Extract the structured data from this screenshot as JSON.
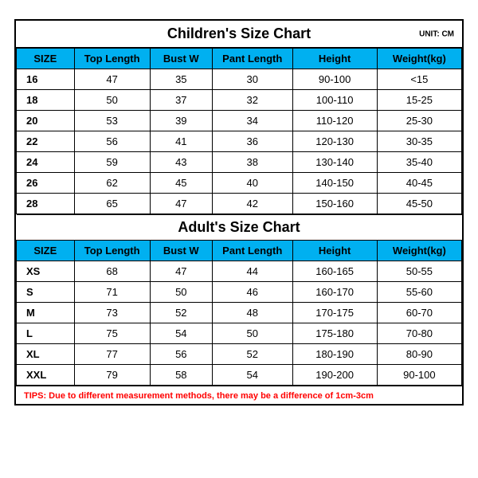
{
  "colors": {
    "header_bg": "#00b0f0",
    "border": "#000000",
    "tips": "#ff0000",
    "background": "#ffffff"
  },
  "children": {
    "title": "Children's Size Chart",
    "unit": "UNIT: CM",
    "columns": [
      "SIZE",
      "Top Length",
      "Bust W",
      "Pant Length",
      "Height",
      "Weight(kg)"
    ],
    "rows": [
      [
        "16",
        "47",
        "35",
        "30",
        "90-100",
        "<15"
      ],
      [
        "18",
        "50",
        "37",
        "32",
        "100-110",
        "15-25"
      ],
      [
        "20",
        "53",
        "39",
        "34",
        "110-120",
        "25-30"
      ],
      [
        "22",
        "56",
        "41",
        "36",
        "120-130",
        "30-35"
      ],
      [
        "24",
        "59",
        "43",
        "38",
        "130-140",
        "35-40"
      ],
      [
        "26",
        "62",
        "45",
        "40",
        "140-150",
        "40-45"
      ],
      [
        "28",
        "65",
        "47",
        "42",
        "150-160",
        "45-50"
      ]
    ]
  },
  "adult": {
    "title": "Adult's Size Chart",
    "columns": [
      "SIZE",
      "Top Length",
      "Bust W",
      "Pant Length",
      "Height",
      "Weight(kg)"
    ],
    "rows": [
      [
        "XS",
        "68",
        "47",
        "44",
        "160-165",
        "50-55"
      ],
      [
        "S",
        "71",
        "50",
        "46",
        "160-170",
        "55-60"
      ],
      [
        "M",
        "73",
        "52",
        "48",
        "170-175",
        "60-70"
      ],
      [
        "L",
        "75",
        "54",
        "50",
        "175-180",
        "70-80"
      ],
      [
        "XL",
        "77",
        "56",
        "52",
        "180-190",
        "80-90"
      ],
      [
        "XXL",
        "79",
        "58",
        "54",
        "190-200",
        "90-100"
      ]
    ]
  },
  "tips": "TIPS: Due to different measurement methods, there may be a difference of 1cm-3cm"
}
